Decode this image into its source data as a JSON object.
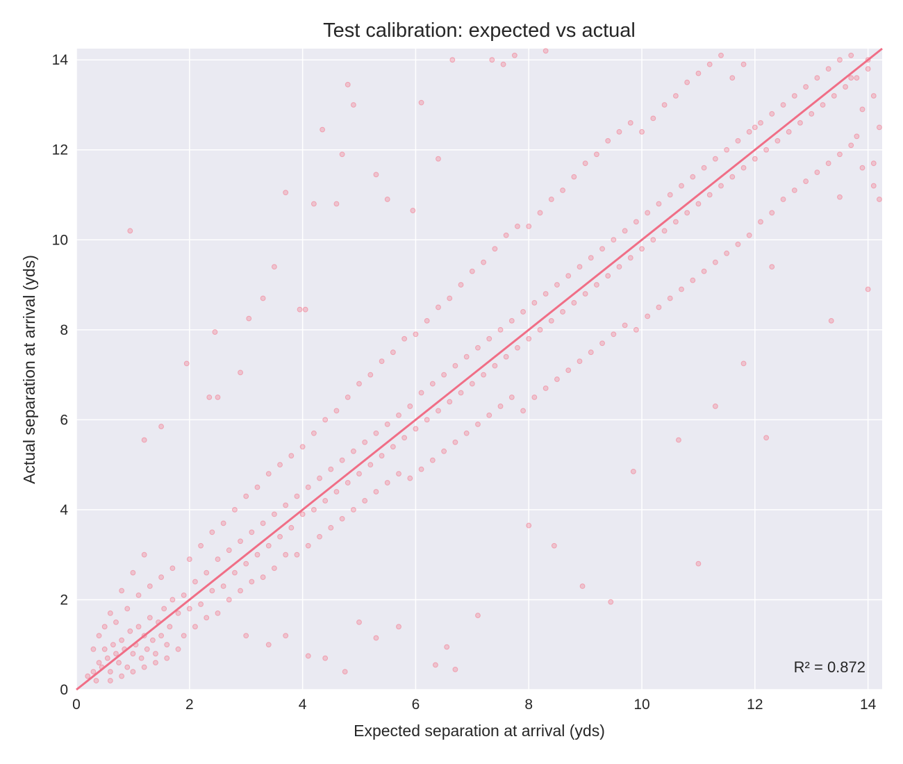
{
  "chart_data": {
    "type": "scatter",
    "title": "Test calibration: expected vs actual",
    "xlabel": "Expected separation at arrival (yds)",
    "ylabel": "Actual separation at arrival (yds)",
    "xlim": [
      0,
      14.25
    ],
    "ylim": [
      0,
      14.25
    ],
    "xticks": [
      "0",
      "2",
      "4",
      "6",
      "8",
      "10",
      "12",
      "14"
    ],
    "yticks": [
      "0",
      "2",
      "4",
      "6",
      "8",
      "10",
      "12",
      "14"
    ],
    "grid": true,
    "annotation": "R² = 0.872",
    "reference_line": {
      "from": [
        0,
        0
      ],
      "to": [
        14.25,
        14.25
      ]
    },
    "points": [
      [
        0.2,
        0.3
      ],
      [
        0.3,
        0.4
      ],
      [
        0.35,
        0.2
      ],
      [
        0.4,
        0.6
      ],
      [
        0.45,
        0.5
      ],
      [
        0.5,
        0.9
      ],
      [
        0.55,
        0.7
      ],
      [
        0.6,
        0.4
      ],
      [
        0.65,
        1.0
      ],
      [
        0.7,
        0.8
      ],
      [
        0.75,
        0.6
      ],
      [
        0.8,
        1.1
      ],
      [
        0.85,
        0.9
      ],
      [
        0.9,
        0.5
      ],
      [
        0.95,
        1.3
      ],
      [
        1.0,
        0.8
      ],
      [
        1.05,
        1.0
      ],
      [
        1.1,
        1.4
      ],
      [
        1.15,
        0.7
      ],
      [
        1.2,
        1.2
      ],
      [
        1.25,
        0.9
      ],
      [
        1.3,
        1.6
      ],
      [
        1.35,
        1.1
      ],
      [
        1.4,
        0.8
      ],
      [
        1.45,
        1.5
      ],
      [
        1.5,
        1.2
      ],
      [
        1.55,
        1.8
      ],
      [
        1.6,
        1.0
      ],
      [
        1.65,
        1.4
      ],
      [
        1.7,
        2.0
      ],
      [
        0.3,
        0.9
      ],
      [
        0.5,
        1.4
      ],
      [
        0.7,
        1.5
      ],
      [
        0.9,
        1.8
      ],
      [
        1.1,
        2.1
      ],
      [
        1.3,
        2.3
      ],
      [
        1.5,
        2.5
      ],
      [
        1.7,
        2.7
      ],
      [
        0.6,
        0.2
      ],
      [
        0.8,
        0.3
      ],
      [
        1.0,
        0.4
      ],
      [
        1.2,
        0.5
      ],
      [
        1.4,
        0.6
      ],
      [
        1.6,
        0.7
      ],
      [
        1.8,
        0.9
      ],
      [
        0.4,
        1.2
      ],
      [
        0.6,
        1.7
      ],
      [
        0.8,
        2.2
      ],
      [
        1.0,
        2.6
      ],
      [
        1.2,
        3.0
      ],
      [
        1.8,
        1.7
      ],
      [
        1.9,
        2.1
      ],
      [
        2.0,
        1.8
      ],
      [
        2.1,
        2.4
      ],
      [
        2.2,
        1.9
      ],
      [
        2.3,
        2.6
      ],
      [
        2.4,
        2.2
      ],
      [
        2.5,
        2.9
      ],
      [
        2.6,
        2.3
      ],
      [
        2.7,
        3.1
      ],
      [
        2.8,
        2.6
      ],
      [
        2.9,
        3.3
      ],
      [
        3.0,
        2.8
      ],
      [
        3.1,
        3.5
      ],
      [
        3.2,
        3.0
      ],
      [
        3.3,
        3.7
      ],
      [
        3.4,
        3.2
      ],
      [
        3.5,
        3.9
      ],
      [
        3.6,
        3.4
      ],
      [
        3.7,
        4.1
      ],
      [
        1.9,
        1.2
      ],
      [
        2.1,
        1.4
      ],
      [
        2.3,
        1.6
      ],
      [
        2.5,
        1.7
      ],
      [
        2.7,
        2.0
      ],
      [
        2.9,
        2.2
      ],
      [
        3.1,
        2.4
      ],
      [
        3.3,
        2.5
      ],
      [
        3.5,
        2.7
      ],
      [
        3.7,
        3.0
      ],
      [
        2.0,
        2.9
      ],
      [
        2.2,
        3.2
      ],
      [
        2.4,
        3.5
      ],
      [
        2.6,
        3.7
      ],
      [
        2.8,
        4.0
      ],
      [
        3.0,
        4.3
      ],
      [
        3.2,
        4.5
      ],
      [
        3.4,
        4.8
      ],
      [
        3.6,
        5.0
      ],
      [
        3.8,
        5.2
      ],
      [
        3.8,
        3.6
      ],
      [
        3.9,
        4.3
      ],
      [
        4.0,
        3.9
      ],
      [
        4.1,
        4.5
      ],
      [
        4.2,
        4.0
      ],
      [
        4.3,
        4.7
      ],
      [
        4.4,
        4.2
      ],
      [
        4.5,
        4.9
      ],
      [
        4.6,
        4.4
      ],
      [
        4.7,
        5.1
      ],
      [
        4.8,
        4.6
      ],
      [
        4.9,
        5.3
      ],
      [
        5.0,
        4.8
      ],
      [
        5.1,
        5.5
      ],
      [
        5.2,
        5.0
      ],
      [
        5.3,
        5.7
      ],
      [
        5.4,
        5.2
      ],
      [
        5.5,
        5.9
      ],
      [
        5.6,
        5.4
      ],
      [
        5.7,
        6.1
      ],
      [
        3.9,
        3.0
      ],
      [
        4.1,
        3.2
      ],
      [
        4.3,
        3.4
      ],
      [
        4.5,
        3.6
      ],
      [
        4.7,
        3.8
      ],
      [
        4.9,
        4.0
      ],
      [
        5.1,
        4.2
      ],
      [
        5.3,
        4.4
      ],
      [
        5.5,
        4.6
      ],
      [
        5.7,
        4.8
      ],
      [
        4.0,
        5.4
      ],
      [
        4.2,
        5.7
      ],
      [
        4.4,
        6.0
      ],
      [
        4.6,
        6.2
      ],
      [
        4.8,
        6.5
      ],
      [
        5.0,
        6.8
      ],
      [
        5.2,
        7.0
      ],
      [
        5.4,
        7.3
      ],
      [
        5.6,
        7.5
      ],
      [
        5.8,
        7.8
      ],
      [
        5.8,
        5.6
      ],
      [
        5.9,
        6.3
      ],
      [
        6.0,
        5.8
      ],
      [
        6.1,
        6.6
      ],
      [
        6.2,
        6.0
      ],
      [
        6.3,
        6.8
      ],
      [
        6.4,
        6.2
      ],
      [
        6.5,
        7.0
      ],
      [
        6.6,
        6.4
      ],
      [
        6.7,
        7.2
      ],
      [
        6.8,
        6.6
      ],
      [
        6.9,
        7.4
      ],
      [
        7.0,
        6.8
      ],
      [
        7.1,
        7.6
      ],
      [
        7.2,
        7.0
      ],
      [
        7.3,
        7.8
      ],
      [
        7.4,
        7.2
      ],
      [
        7.5,
        8.0
      ],
      [
        7.6,
        7.4
      ],
      [
        7.7,
        8.2
      ],
      [
        5.9,
        4.7
      ],
      [
        6.1,
        4.9
      ],
      [
        6.3,
        5.1
      ],
      [
        6.5,
        5.3
      ],
      [
        6.7,
        5.5
      ],
      [
        6.9,
        5.7
      ],
      [
        7.1,
        5.9
      ],
      [
        7.3,
        6.1
      ],
      [
        7.5,
        6.3
      ],
      [
        7.7,
        6.5
      ],
      [
        6.0,
        7.9
      ],
      [
        6.2,
        8.2
      ],
      [
        6.4,
        8.5
      ],
      [
        6.6,
        8.7
      ],
      [
        6.8,
        9.0
      ],
      [
        7.0,
        9.3
      ],
      [
        7.2,
        9.5
      ],
      [
        7.4,
        9.8
      ],
      [
        7.6,
        10.1
      ],
      [
        7.8,
        10.3
      ],
      [
        7.8,
        7.6
      ],
      [
        7.9,
        8.4
      ],
      [
        8.0,
        7.8
      ],
      [
        8.1,
        8.6
      ],
      [
        8.2,
        8.0
      ],
      [
        8.3,
        8.8
      ],
      [
        8.4,
        8.2
      ],
      [
        8.5,
        9.0
      ],
      [
        8.6,
        8.4
      ],
      [
        8.7,
        9.2
      ],
      [
        8.8,
        8.6
      ],
      [
        8.9,
        9.4
      ],
      [
        9.0,
        8.8
      ],
      [
        9.1,
        9.6
      ],
      [
        9.2,
        9.0
      ],
      [
        9.3,
        9.8
      ],
      [
        9.4,
        9.2
      ],
      [
        9.5,
        10.0
      ],
      [
        9.6,
        9.4
      ],
      [
        9.7,
        10.2
      ],
      [
        7.9,
        6.2
      ],
      [
        8.1,
        6.5
      ],
      [
        8.3,
        6.7
      ],
      [
        8.5,
        6.9
      ],
      [
        8.7,
        7.1
      ],
      [
        8.9,
        7.3
      ],
      [
        9.1,
        7.5
      ],
      [
        9.3,
        7.7
      ],
      [
        9.5,
        7.9
      ],
      [
        9.7,
        8.1
      ],
      [
        8.0,
        10.3
      ],
      [
        8.2,
        10.6
      ],
      [
        8.4,
        10.9
      ],
      [
        8.6,
        11.1
      ],
      [
        8.8,
        11.4
      ],
      [
        9.0,
        11.7
      ],
      [
        9.2,
        11.9
      ],
      [
        9.4,
        12.2
      ],
      [
        9.6,
        12.4
      ],
      [
        9.8,
        12.6
      ],
      [
        9.8,
        9.6
      ],
      [
        9.9,
        10.4
      ],
      [
        10.0,
        9.8
      ],
      [
        10.1,
        10.6
      ],
      [
        10.2,
        10.0
      ],
      [
        10.3,
        10.8
      ],
      [
        10.4,
        10.2
      ],
      [
        10.5,
        11.0
      ],
      [
        10.6,
        10.4
      ],
      [
        10.7,
        11.2
      ],
      [
        10.8,
        10.6
      ],
      [
        10.9,
        11.4
      ],
      [
        11.0,
        10.8
      ],
      [
        11.1,
        11.6
      ],
      [
        11.2,
        11.0
      ],
      [
        11.3,
        11.8
      ],
      [
        11.4,
        11.2
      ],
      [
        11.5,
        12.0
      ],
      [
        11.6,
        11.4
      ],
      [
        11.7,
        12.2
      ],
      [
        9.9,
        8.0
      ],
      [
        10.1,
        8.3
      ],
      [
        10.3,
        8.5
      ],
      [
        10.5,
        8.7
      ],
      [
        10.7,
        8.9
      ],
      [
        10.9,
        9.1
      ],
      [
        11.1,
        9.3
      ],
      [
        11.3,
        9.5
      ],
      [
        11.5,
        9.7
      ],
      [
        11.7,
        9.9
      ],
      [
        10.0,
        12.4
      ],
      [
        10.2,
        12.7
      ],
      [
        10.4,
        13.0
      ],
      [
        10.6,
        13.2
      ],
      [
        10.8,
        13.5
      ],
      [
        11.0,
        13.7
      ],
      [
        11.2,
        13.9
      ],
      [
        11.4,
        14.1
      ],
      [
        11.6,
        13.6
      ],
      [
        11.8,
        13.9
      ],
      [
        11.8,
        11.6
      ],
      [
        11.9,
        12.4
      ],
      [
        12.0,
        11.8
      ],
      [
        12.1,
        12.6
      ],
      [
        12.2,
        12.0
      ],
      [
        12.3,
        12.8
      ],
      [
        12.4,
        12.2
      ],
      [
        12.5,
        13.0
      ],
      [
        12.6,
        12.4
      ],
      [
        12.7,
        13.2
      ],
      [
        12.8,
        12.6
      ],
      [
        12.9,
        13.4
      ],
      [
        13.0,
        12.8
      ],
      [
        13.1,
        13.6
      ],
      [
        13.2,
        13.0
      ],
      [
        13.3,
        13.8
      ],
      [
        13.4,
        13.2
      ],
      [
        13.5,
        14.0
      ],
      [
        13.6,
        13.4
      ],
      [
        13.7,
        14.1
      ],
      [
        11.9,
        10.1
      ],
      [
        12.1,
        10.4
      ],
      [
        12.3,
        10.6
      ],
      [
        12.5,
        10.9
      ],
      [
        12.7,
        11.1
      ],
      [
        12.9,
        11.3
      ],
      [
        13.1,
        11.5
      ],
      [
        13.3,
        11.7
      ],
      [
        13.5,
        11.9
      ],
      [
        13.7,
        12.1
      ],
      [
        13.8,
        13.6
      ],
      [
        13.9,
        12.9
      ],
      [
        14.0,
        14.0
      ],
      [
        14.1,
        13.2
      ],
      [
        14.2,
        12.5
      ],
      [
        13.9,
        11.6
      ],
      [
        14.1,
        11.7
      ],
      [
        14.2,
        10.9
      ],
      [
        13.8,
        12.3
      ],
      [
        14.0,
        13.8
      ],
      [
        0.95,
        10.2
      ],
      [
        1.5,
        5.85
      ],
      [
        1.2,
        5.55
      ],
      [
        1.95,
        7.25
      ],
      [
        2.35,
        6.5
      ],
      [
        2.5,
        6.5
      ],
      [
        2.45,
        7.95
      ],
      [
        2.9,
        7.05
      ],
      [
        3.05,
        8.25
      ],
      [
        3.3,
        8.7
      ],
      [
        3.5,
        9.4
      ],
      [
        3.7,
        11.05
      ],
      [
        3.95,
        8.45
      ],
      [
        4.05,
        8.45
      ],
      [
        4.2,
        10.8
      ],
      [
        4.35,
        12.45
      ],
      [
        4.6,
        10.8
      ],
      [
        4.7,
        11.9
      ],
      [
        4.8,
        13.45
      ],
      [
        4.9,
        13.0
      ],
      [
        5.3,
        11.45
      ],
      [
        5.5,
        10.9
      ],
      [
        5.95,
        10.65
      ],
      [
        6.1,
        13.05
      ],
      [
        6.4,
        11.8
      ],
      [
        6.65,
        14.0
      ],
      [
        7.35,
        14.0
      ],
      [
        7.55,
        13.9
      ],
      [
        7.75,
        14.1
      ],
      [
        8.3,
        14.2
      ],
      [
        3.0,
        1.2
      ],
      [
        3.4,
        1.0
      ],
      [
        3.7,
        1.2
      ],
      [
        4.1,
        0.75
      ],
      [
        4.4,
        0.7
      ],
      [
        4.75,
        0.4
      ],
      [
        5.0,
        1.5
      ],
      [
        5.3,
        1.15
      ],
      [
        5.7,
        1.4
      ],
      [
        6.35,
        0.55
      ],
      [
        6.7,
        0.45
      ],
      [
        6.55,
        0.95
      ],
      [
        7.1,
        1.65
      ],
      [
        8.0,
        3.65
      ],
      [
        8.45,
        3.2
      ],
      [
        8.95,
        2.3
      ],
      [
        9.45,
        1.95
      ],
      [
        11.0,
        2.8
      ],
      [
        10.65,
        5.55
      ],
      [
        11.3,
        6.3
      ],
      [
        12.2,
        5.6
      ],
      [
        12.3,
        9.4
      ],
      [
        13.35,
        8.2
      ],
      [
        14.0,
        8.9
      ],
      [
        11.8,
        7.25
      ],
      [
        13.5,
        10.95
      ],
      [
        13.7,
        13.6
      ],
      [
        14.1,
        11.2
      ],
      [
        12.0,
        12.5
      ],
      [
        9.85,
        4.85
      ]
    ]
  },
  "colors": {
    "points": "#f37b90",
    "line": "#f06e86",
    "plot_bg": "#eaeaf2",
    "grid": "#ffffff",
    "text": "#262626"
  }
}
